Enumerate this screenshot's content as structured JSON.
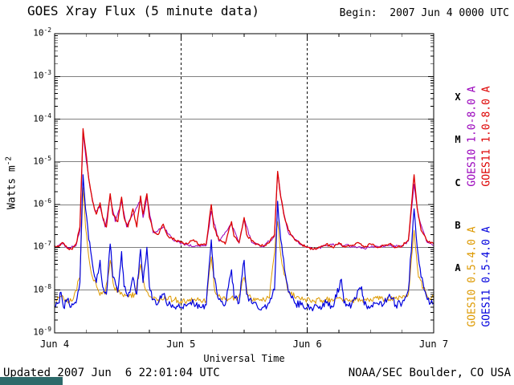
{
  "header": {
    "title": "GOES Xray Flux (5 minute data)",
    "begin": "Begin:  2007 Jun 4 0000 UTC"
  },
  "footer": {
    "updated": "Updated 2007 Jun  6 22:01:04 UTC",
    "credit": "NOAA/SEC Boulder, CO USA"
  },
  "colors": {
    "banner": "#2d6a6a",
    "goes10_long": "#9900bb",
    "goes11_long": "#dd0000",
    "goes10_short": "#dd9900",
    "goes11_short": "#0000dd"
  },
  "legend": [
    {
      "label": "GOES10 1.0-8.0 A",
      "color": "#9900bb"
    },
    {
      "label": "GOES11 1.0-8.0 A",
      "color": "#dd0000"
    },
    {
      "label": "GOES10 0.5-4.0 A",
      "color": "#dd9900"
    },
    {
      "label": "GOES11 0.5-4.0 A",
      "color": "#0000dd"
    }
  ],
  "chart_data": {
    "type": "line",
    "title": "GOES Xray Flux (5 minute data)",
    "xlabel": "Universal Time",
    "ylabel": "Watts m^-2",
    "x_unit": "days since 2007 Jun 4 0000 UTC",
    "xlim": [
      0,
      3
    ],
    "y_exponent_range": [
      -9,
      -2
    ],
    "y_scale": "log10",
    "x_ticks": [
      {
        "day": 0,
        "label": "Jun 4"
      },
      {
        "day": 1,
        "label": "Jun 5"
      },
      {
        "day": 2,
        "label": "Jun 6"
      },
      {
        "day": 3,
        "label": "Jun 7"
      }
    ],
    "y_ticks": [
      {
        "exp": -2,
        "label": "10^-2"
      },
      {
        "exp": -3,
        "label": "10^-3"
      },
      {
        "exp": -4,
        "label": "10^-4"
      },
      {
        "exp": -5,
        "label": "10^-5"
      },
      {
        "exp": -6,
        "label": "10^-6"
      },
      {
        "exp": -7,
        "label": "10^-7"
      },
      {
        "exp": -8,
        "label": "10^-8"
      },
      {
        "exp": -9,
        "label": "10^-9"
      }
    ],
    "flare_classes": [
      {
        "label": "X",
        "mid_exp": -3.5
      },
      {
        "label": "M",
        "mid_exp": -4.5
      },
      {
        "label": "C",
        "mid_exp": -5.5
      },
      {
        "label": "B",
        "mid_exp": -6.5
      },
      {
        "label": "A",
        "mid_exp": -7.5
      }
    ],
    "hgrid_exponents": [
      -3,
      -4,
      -5,
      -6,
      -7,
      -8
    ],
    "vgrid_days": [
      1,
      2
    ],
    "noise_seed": 20070604,
    "series": [
      {
        "name": "GOES10 1.0-8.0 A",
        "color": "#9900bb",
        "noise": 0.03,
        "points": [
          [
            0.0,
            1.05e-07
          ],
          [
            0.06,
            1.2e-07
          ],
          [
            0.1,
            1e-07
          ],
          [
            0.17,
            1.1e-07
          ],
          [
            0.2,
            2.5e-07
          ],
          [
            0.225,
            5e-05
          ],
          [
            0.25,
            1.1e-05
          ],
          [
            0.28,
            2.5e-06
          ],
          [
            0.32,
            7e-07
          ],
          [
            0.36,
            9e-07
          ],
          [
            0.4,
            3e-07
          ],
          [
            0.44,
            1.5e-06
          ],
          [
            0.48,
            4e-07
          ],
          [
            0.53,
            1.2e-06
          ],
          [
            0.57,
            3e-07
          ],
          [
            0.62,
            6e-07
          ],
          [
            0.68,
            1.3e-06
          ],
          [
            0.7,
            5e-07
          ],
          [
            0.73,
            1.5e-06
          ],
          [
            0.78,
            2.2e-07
          ],
          [
            0.86,
            3e-07
          ],
          [
            0.95,
            1.4e-07
          ],
          [
            1.05,
            1.15e-07
          ],
          [
            1.15,
            1.05e-07
          ],
          [
            1.2,
            1.1e-07
          ],
          [
            1.24,
            7e-07
          ],
          [
            1.3,
            1.4e-07
          ],
          [
            1.4,
            3.5e-07
          ],
          [
            1.46,
            1.25e-07
          ],
          [
            1.5,
            4.5e-07
          ],
          [
            1.56,
            1.3e-07
          ],
          [
            1.65,
            1.05e-07
          ],
          [
            1.74,
            1.8e-07
          ],
          [
            1.765,
            5.5e-06
          ],
          [
            1.8,
            1e-06
          ],
          [
            1.85,
            2.2e-07
          ],
          [
            1.95,
            1.15e-07
          ],
          [
            2.05,
            9e-08
          ],
          [
            2.15,
            1.1e-07
          ],
          [
            2.25,
            1.2e-07
          ],
          [
            2.35,
            1.05e-07
          ],
          [
            2.45,
            9.5e-08
          ],
          [
            2.55,
            1.05e-07
          ],
          [
            2.65,
            1.1e-07
          ],
          [
            2.75,
            1.05e-07
          ],
          [
            2.8,
            1.4e-07
          ],
          [
            2.845,
            3e-06
          ],
          [
            2.88,
            5e-07
          ],
          [
            2.95,
            1.3e-07
          ],
          [
            3.0,
            1.1e-07
          ]
        ]
      },
      {
        "name": "GOES10 0.5-4.0 A",
        "color": "#dd9900",
        "noise": 0.07,
        "points": [
          [
            0.0,
            6e-09
          ],
          [
            0.05,
            7e-09
          ],
          [
            0.1,
            5.5e-09
          ],
          [
            0.15,
            6.5e-09
          ],
          [
            0.2,
            2e-08
          ],
          [
            0.225,
            2.5e-06
          ],
          [
            0.245,
            3e-07
          ],
          [
            0.27,
            6e-08
          ],
          [
            0.3,
            2e-08
          ],
          [
            0.35,
            9e-09
          ],
          [
            0.4,
            8e-09
          ],
          [
            0.44,
            5e-08
          ],
          [
            0.47,
            1.2e-08
          ],
          [
            0.52,
            8e-09
          ],
          [
            0.58,
            7e-09
          ],
          [
            0.64,
            8e-09
          ],
          [
            0.68,
            4e-08
          ],
          [
            0.72,
            1e-08
          ],
          [
            0.76,
            7e-09
          ],
          [
            0.82,
            6e-09
          ],
          [
            0.88,
            6.5e-09
          ],
          [
            0.95,
            6e-09
          ],
          [
            1.0,
            5.5e-09
          ],
          [
            1.1,
            6e-09
          ],
          [
            1.2,
            5.5e-09
          ],
          [
            1.24,
            6e-08
          ],
          [
            1.27,
            9e-09
          ],
          [
            1.35,
            6e-09
          ],
          [
            1.45,
            6.5e-09
          ],
          [
            1.5,
            2e-08
          ],
          [
            1.53,
            7e-09
          ],
          [
            1.6,
            6e-09
          ],
          [
            1.7,
            6.5e-09
          ],
          [
            1.765,
            4e-07
          ],
          [
            1.8,
            4e-08
          ],
          [
            1.85,
            9e-09
          ],
          [
            1.95,
            6e-09
          ],
          [
            2.05,
            5.5e-09
          ],
          [
            2.15,
            6e-09
          ],
          [
            2.25,
            6.5e-09
          ],
          [
            2.35,
            5.5e-09
          ],
          [
            2.45,
            6e-09
          ],
          [
            2.55,
            6.5e-09
          ],
          [
            2.65,
            6e-09
          ],
          [
            2.75,
            6.5e-09
          ],
          [
            2.8,
            8e-09
          ],
          [
            2.845,
            2.5e-07
          ],
          [
            2.88,
            2e-08
          ],
          [
            2.95,
            7e-09
          ],
          [
            3.0,
            6.5e-09
          ]
        ]
      },
      {
        "name": "GOES11 1.0-8.0 A",
        "color": "#dd0000",
        "noise": 0.03,
        "points": [
          [
            0.0,
            1.1e-07
          ],
          [
            0.03,
            1e-07
          ],
          [
            0.06,
            1.3e-07
          ],
          [
            0.1,
            9.5e-08
          ],
          [
            0.14,
            9e-08
          ],
          [
            0.17,
            1.2e-07
          ],
          [
            0.2,
            3e-07
          ],
          [
            0.225,
            6e-05
          ],
          [
            0.245,
            2e-05
          ],
          [
            0.27,
            4e-06
          ],
          [
            0.3,
            1.2e-06
          ],
          [
            0.33,
            6e-07
          ],
          [
            0.36,
            1.1e-06
          ],
          [
            0.38,
            5e-07
          ],
          [
            0.41,
            3e-07
          ],
          [
            0.44,
            1.8e-06
          ],
          [
            0.46,
            6e-07
          ],
          [
            0.5,
            4e-07
          ],
          [
            0.53,
            1.5e-06
          ],
          [
            0.55,
            5e-07
          ],
          [
            0.58,
            3e-07
          ],
          [
            0.62,
            8e-07
          ],
          [
            0.65,
            3e-07
          ],
          [
            0.68,
            1.6e-06
          ],
          [
            0.7,
            6e-07
          ],
          [
            0.73,
            1.8e-06
          ],
          [
            0.75,
            5e-07
          ],
          [
            0.78,
            2.5e-07
          ],
          [
            0.82,
            2e-07
          ],
          [
            0.86,
            3.5e-07
          ],
          [
            0.9,
            1.8e-07
          ],
          [
            0.95,
            1.5e-07
          ],
          [
            1.0,
            1.3e-07
          ],
          [
            1.05,
            1.2e-07
          ],
          [
            1.1,
            1.5e-07
          ],
          [
            1.15,
            1.1e-07
          ],
          [
            1.2,
            1.2e-07
          ],
          [
            1.24,
            1e-06
          ],
          [
            1.26,
            3e-07
          ],
          [
            1.3,
            1.5e-07
          ],
          [
            1.35,
            1.2e-07
          ],
          [
            1.4,
            4e-07
          ],
          [
            1.42,
            1.8e-07
          ],
          [
            1.46,
            1.3e-07
          ],
          [
            1.5,
            5e-07
          ],
          [
            1.52,
            2e-07
          ],
          [
            1.56,
            1.4e-07
          ],
          [
            1.6,
            1.2e-07
          ],
          [
            1.65,
            1.1e-07
          ],
          [
            1.7,
            1.3e-07
          ],
          [
            1.74,
            2e-07
          ],
          [
            1.765,
            6e-06
          ],
          [
            1.79,
            1.5e-06
          ],
          [
            1.82,
            5e-07
          ],
          [
            1.85,
            2.5e-07
          ],
          [
            1.9,
            1.5e-07
          ],
          [
            1.95,
            1.2e-07
          ],
          [
            2.0,
            1e-07
          ],
          [
            2.05,
            9e-08
          ],
          [
            2.1,
            1e-07
          ],
          [
            2.15,
            1.2e-07
          ],
          [
            2.2,
            1e-07
          ],
          [
            2.25,
            1.3e-07
          ],
          [
            2.3,
            1e-07
          ],
          [
            2.35,
            1.1e-07
          ],
          [
            2.4,
            1.3e-07
          ],
          [
            2.45,
            1e-07
          ],
          [
            2.5,
            1.2e-07
          ],
          [
            2.55,
            1e-07
          ],
          [
            2.6,
            1.1e-07
          ],
          [
            2.65,
            1.2e-07
          ],
          [
            2.7,
            1e-07
          ],
          [
            2.75,
            1.1e-07
          ],
          [
            2.8,
            1.5e-07
          ],
          [
            2.845,
            5e-06
          ],
          [
            2.87,
            8e-07
          ],
          [
            2.9,
            2.5e-07
          ],
          [
            2.95,
            1.4e-07
          ],
          [
            3.0,
            1.2e-07
          ]
        ]
      },
      {
        "name": "GOES11 0.5-4.0 A",
        "color": "#0000dd",
        "noise": 0.09,
        "points": [
          [
            0.0,
            4e-09
          ],
          [
            0.03,
            5e-09
          ],
          [
            0.05,
            9e-09
          ],
          [
            0.07,
            4e-09
          ],
          [
            0.1,
            6e-09
          ],
          [
            0.13,
            4e-09
          ],
          [
            0.17,
            5e-09
          ],
          [
            0.2,
            1.5e-08
          ],
          [
            0.225,
            5e-06
          ],
          [
            0.245,
            8e-07
          ],
          [
            0.27,
            1.5e-07
          ],
          [
            0.3,
            4e-08
          ],
          [
            0.33,
            1.5e-08
          ],
          [
            0.36,
            5e-08
          ],
          [
            0.38,
            1.2e-08
          ],
          [
            0.41,
            8e-09
          ],
          [
            0.44,
            1.2e-07
          ],
          [
            0.46,
            2e-08
          ],
          [
            0.5,
            9e-09
          ],
          [
            0.53,
            8e-08
          ],
          [
            0.55,
            1.2e-08
          ],
          [
            0.58,
            7e-09
          ],
          [
            0.62,
            2e-08
          ],
          [
            0.65,
            8e-09
          ],
          [
            0.68,
            9e-08
          ],
          [
            0.7,
            1.5e-08
          ],
          [
            0.73,
            1e-07
          ],
          [
            0.75,
            1.2e-08
          ],
          [
            0.78,
            6e-09
          ],
          [
            0.82,
            5e-09
          ],
          [
            0.86,
            8e-09
          ],
          [
            0.9,
            4.5e-09
          ],
          [
            0.95,
            4e-09
          ],
          [
            1.0,
            4e-09
          ],
          [
            1.05,
            4.5e-09
          ],
          [
            1.1,
            5e-09
          ],
          [
            1.15,
            4e-09
          ],
          [
            1.2,
            4.5e-09
          ],
          [
            1.24,
            1.5e-07
          ],
          [
            1.26,
            2e-08
          ],
          [
            1.3,
            6e-09
          ],
          [
            1.35,
            4.5e-09
          ],
          [
            1.4,
            3e-08
          ],
          [
            1.42,
            7e-09
          ],
          [
            1.46,
            5e-09
          ],
          [
            1.5,
            5e-08
          ],
          [
            1.52,
            8e-09
          ],
          [
            1.56,
            5e-09
          ],
          [
            1.6,
            4.5e-09
          ],
          [
            1.65,
            4e-09
          ],
          [
            1.7,
            5e-09
          ],
          [
            1.74,
            1e-08
          ],
          [
            1.765,
            1.2e-06
          ],
          [
            1.79,
            1.5e-07
          ],
          [
            1.82,
            3e-08
          ],
          [
            1.85,
            9e-09
          ],
          [
            1.9,
            5e-09
          ],
          [
            1.95,
            4.5e-09
          ],
          [
            2.0,
            4e-09
          ],
          [
            2.05,
            3.8e-09
          ],
          [
            2.1,
            4.2e-09
          ],
          [
            2.15,
            5e-09
          ],
          [
            2.2,
            4e-09
          ],
          [
            2.27,
            1.8e-08
          ],
          [
            2.29,
            5e-09
          ],
          [
            2.35,
            4.5e-09
          ],
          [
            2.43,
            1.2e-08
          ],
          [
            2.45,
            4.5e-09
          ],
          [
            2.5,
            4e-09
          ],
          [
            2.55,
            5e-09
          ],
          [
            2.6,
            4.5e-09
          ],
          [
            2.65,
            8e-09
          ],
          [
            2.7,
            4.5e-09
          ],
          [
            2.75,
            5e-09
          ],
          [
            2.8,
            1e-08
          ],
          [
            2.845,
            8e-07
          ],
          [
            2.87,
            1e-07
          ],
          [
            2.9,
            2e-08
          ],
          [
            2.95,
            6e-09
          ],
          [
            3.0,
            5e-09
          ]
        ]
      }
    ]
  }
}
